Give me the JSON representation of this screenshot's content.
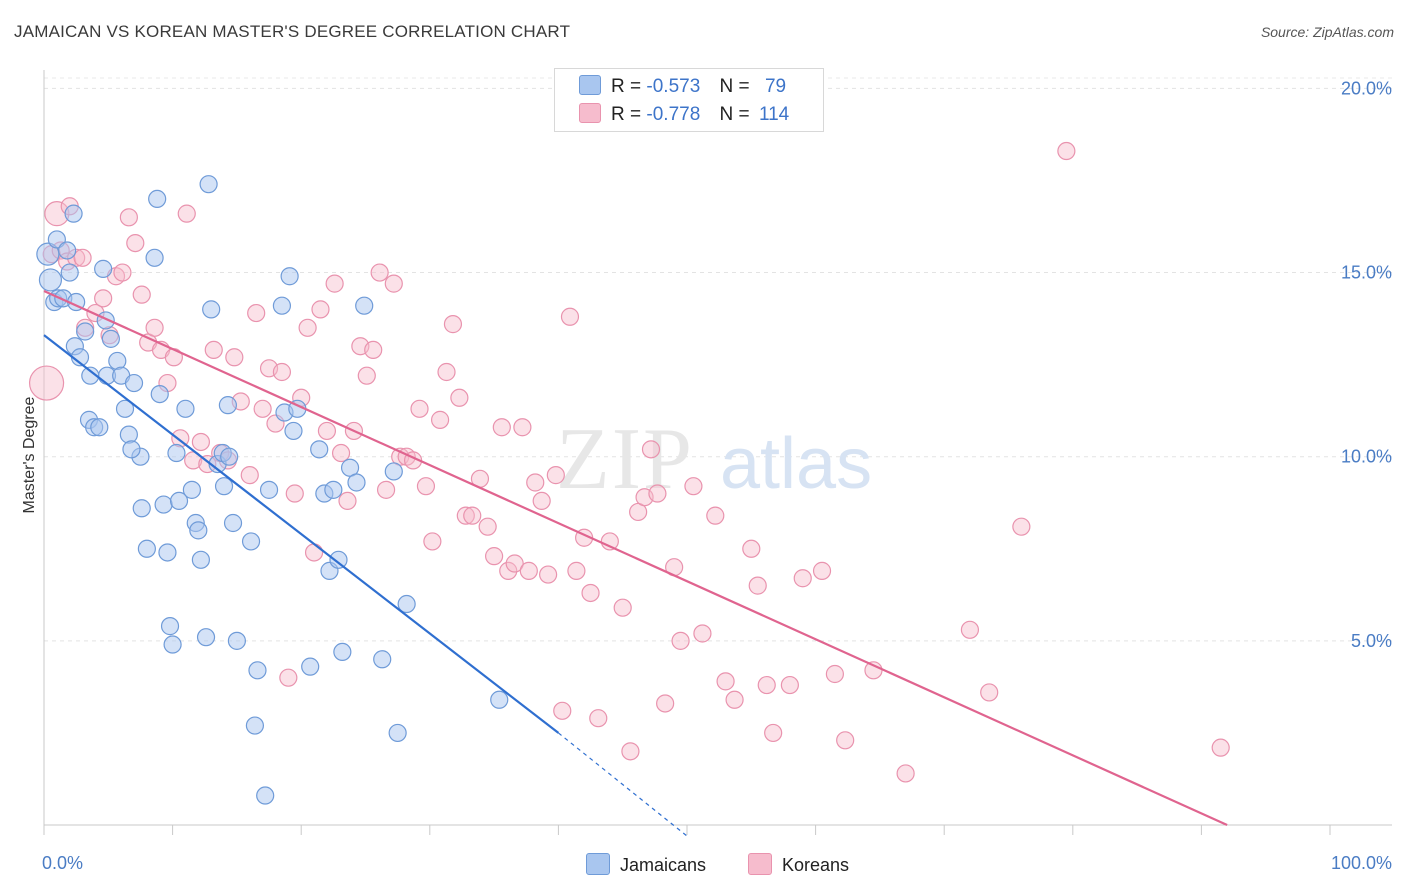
{
  "header": {
    "title": "JAMAICAN VS KOREAN MASTER'S DEGREE CORRELATION CHART",
    "source": "Source: ZipAtlas.com"
  },
  "watermark": {
    "zip": "ZIP",
    "atlas": "atlas"
  },
  "legend": {
    "jamaican": {
      "r_label": "R =",
      "r_value": "-0.573",
      "n_label": "N =",
      "n_value": "79"
    },
    "korean": {
      "r_label": "R =",
      "r_value": "-0.778",
      "n_label": "N =",
      "n_value": "114"
    }
  },
  "bottom_legend": {
    "jamaicans": "Jamaicans",
    "koreans": "Koreans"
  },
  "colors": {
    "jamaican_fill": "#a9c6ef",
    "jamaican_stroke": "#6f9bd8",
    "jamaican_line": "#2f6fd0",
    "korean_fill": "#f6bccd",
    "korean_stroke": "#e993ae",
    "korean_line": "#e0648f"
  },
  "chart_data": {
    "type": "scatter",
    "title": "JAMAICAN VS KOREAN MASTER'S DEGREE CORRELATION CHART",
    "ylabel": "Master's Degree",
    "xlabel": "",
    "x_tick_labels": [
      "0.0%",
      "100.0%"
    ],
    "y_tick_labels": [
      "5.0%",
      "10.0%",
      "15.0%",
      "20.0%"
    ],
    "xlim": [
      0,
      100
    ],
    "ylim": [
      0,
      20.5
    ],
    "grid": true,
    "series": [
      {
        "name": "Jamaicans",
        "r": -0.573,
        "n": 79,
        "trend": {
          "x": [
            0,
            40
          ],
          "y": [
            13.3,
            2.5
          ],
          "dashed_to": [
            50,
            -0.3
          ]
        },
        "points": [
          [
            0.3,
            15.5
          ],
          [
            0.5,
            14.8
          ],
          [
            0.8,
            14.2
          ],
          [
            1.0,
            15.9
          ],
          [
            1.1,
            14.3
          ],
          [
            1.5,
            14.3
          ],
          [
            1.8,
            15.6
          ],
          [
            2.0,
            15.0
          ],
          [
            2.3,
            16.6
          ],
          [
            2.5,
            14.2
          ],
          [
            2.4,
            13.0
          ],
          [
            2.8,
            12.7
          ],
          [
            3.2,
            13.4
          ],
          [
            3.5,
            11.0
          ],
          [
            3.9,
            10.8
          ],
          [
            4.3,
            10.8
          ],
          [
            4.6,
            15.1
          ],
          [
            4.8,
            13.7
          ],
          [
            4.9,
            12.2
          ],
          [
            5.2,
            13.2
          ],
          [
            5.7,
            12.6
          ],
          [
            6.0,
            12.2
          ],
          [
            6.3,
            11.3
          ],
          [
            6.6,
            10.6
          ],
          [
            7.0,
            12.0
          ],
          [
            7.5,
            10.0
          ],
          [
            7.6,
            8.6
          ],
          [
            8.0,
            7.5
          ],
          [
            8.6,
            15.4
          ],
          [
            8.8,
            17.0
          ],
          [
            9.0,
            11.7
          ],
          [
            9.3,
            8.7
          ],
          [
            9.6,
            7.4
          ],
          [
            9.8,
            5.4
          ],
          [
            10.0,
            4.9
          ],
          [
            10.3,
            10.1
          ],
          [
            10.5,
            8.8
          ],
          [
            11.0,
            11.3
          ],
          [
            11.5,
            9.1
          ],
          [
            11.8,
            8.2
          ],
          [
            12.0,
            8.0
          ],
          [
            12.2,
            7.2
          ],
          [
            12.6,
            5.1
          ],
          [
            13.0,
            14.0
          ],
          [
            13.5,
            9.8
          ],
          [
            13.9,
            10.1
          ],
          [
            14.0,
            9.2
          ],
          [
            14.3,
            11.4
          ],
          [
            14.7,
            8.2
          ],
          [
            15.0,
            5.0
          ],
          [
            12.8,
            17.4
          ],
          [
            14.4,
            10.0
          ],
          [
            16.1,
            7.7
          ],
          [
            16.4,
            2.7
          ],
          [
            16.6,
            4.2
          ],
          [
            17.2,
            0.8
          ],
          [
            17.5,
            9.1
          ],
          [
            18.5,
            14.1
          ],
          [
            18.7,
            11.2
          ],
          [
            19.1,
            14.9
          ],
          [
            19.4,
            10.7
          ],
          [
            19.7,
            11.3
          ],
          [
            20.7,
            4.3
          ],
          [
            21.4,
            10.2
          ],
          [
            21.8,
            9.0
          ],
          [
            22.2,
            6.9
          ],
          [
            22.5,
            9.1
          ],
          [
            22.9,
            7.2
          ],
          [
            23.2,
            4.7
          ],
          [
            23.8,
            9.7
          ],
          [
            24.3,
            9.3
          ],
          [
            24.9,
            14.1
          ],
          [
            26.3,
            4.5
          ],
          [
            27.5,
            2.5
          ],
          [
            27.2,
            9.6
          ],
          [
            28.2,
            6.0
          ],
          [
            35.4,
            3.4
          ],
          [
            3.6,
            12.2
          ],
          [
            6.8,
            10.2
          ]
        ]
      },
      {
        "name": "Koreans",
        "r": -0.778,
        "n": 114,
        "trend": {
          "x": [
            0,
            92
          ],
          "y": [
            14.5,
            0.0
          ]
        },
        "points": [
          [
            0.2,
            12.0
          ],
          [
            0.6,
            15.5
          ],
          [
            1.0,
            16.6
          ],
          [
            1.3,
            15.6
          ],
          [
            1.8,
            15.3
          ],
          [
            2.0,
            16.8
          ],
          [
            2.5,
            15.4
          ],
          [
            3.0,
            15.4
          ],
          [
            3.2,
            13.5
          ],
          [
            4.0,
            13.9
          ],
          [
            4.6,
            14.3
          ],
          [
            5.1,
            13.3
          ],
          [
            5.6,
            14.9
          ],
          [
            6.1,
            15.0
          ],
          [
            6.6,
            16.5
          ],
          [
            7.1,
            15.8
          ],
          [
            7.6,
            14.4
          ],
          [
            8.1,
            13.1
          ],
          [
            8.6,
            13.5
          ],
          [
            9.1,
            12.9
          ],
          [
            9.6,
            12.0
          ],
          [
            10.1,
            12.7
          ],
          [
            10.6,
            10.5
          ],
          [
            11.1,
            16.6
          ],
          [
            11.6,
            9.9
          ],
          [
            12.2,
            10.4
          ],
          [
            12.7,
            9.8
          ],
          [
            13.2,
            12.9
          ],
          [
            13.7,
            10.1
          ],
          [
            14.3,
            9.9
          ],
          [
            14.8,
            12.7
          ],
          [
            15.3,
            11.5
          ],
          [
            16.0,
            9.5
          ],
          [
            16.5,
            13.9
          ],
          [
            17.0,
            11.3
          ],
          [
            17.5,
            12.4
          ],
          [
            18.0,
            10.9
          ],
          [
            18.5,
            12.3
          ],
          [
            19.0,
            4.0
          ],
          [
            19.5,
            9.0
          ],
          [
            20.0,
            11.6
          ],
          [
            20.5,
            13.5
          ],
          [
            21.0,
            7.4
          ],
          [
            21.5,
            14.0
          ],
          [
            22.0,
            10.7
          ],
          [
            22.6,
            14.7
          ],
          [
            23.1,
            10.1
          ],
          [
            23.6,
            8.8
          ],
          [
            24.1,
            10.7
          ],
          [
            24.6,
            13.0
          ],
          [
            25.1,
            12.2
          ],
          [
            25.6,
            12.9
          ],
          [
            26.1,
            15.0
          ],
          [
            26.6,
            9.1
          ],
          [
            27.2,
            14.7
          ],
          [
            27.7,
            10.0
          ],
          [
            28.2,
            10.0
          ],
          [
            28.7,
            9.9
          ],
          [
            29.2,
            11.3
          ],
          [
            29.7,
            9.2
          ],
          [
            30.2,
            7.7
          ],
          [
            30.8,
            11.0
          ],
          [
            31.3,
            12.3
          ],
          [
            31.8,
            13.6
          ],
          [
            32.3,
            11.6
          ],
          [
            32.8,
            8.4
          ],
          [
            33.3,
            8.4
          ],
          [
            33.9,
            9.4
          ],
          [
            34.5,
            8.1
          ],
          [
            35.0,
            7.3
          ],
          [
            35.6,
            10.8
          ],
          [
            36.1,
            6.9
          ],
          [
            36.6,
            7.1
          ],
          [
            37.2,
            10.8
          ],
          [
            37.7,
            6.9
          ],
          [
            38.2,
            9.3
          ],
          [
            38.7,
            8.8
          ],
          [
            39.2,
            6.8
          ],
          [
            39.8,
            9.5
          ],
          [
            40.3,
            3.1
          ],
          [
            40.9,
            13.8
          ],
          [
            41.4,
            6.9
          ],
          [
            42.0,
            7.8
          ],
          [
            42.5,
            6.3
          ],
          [
            43.1,
            2.9
          ],
          [
            44.0,
            7.7
          ],
          [
            45.0,
            5.9
          ],
          [
            45.6,
            2.0
          ],
          [
            46.2,
            8.5
          ],
          [
            46.7,
            8.9
          ],
          [
            47.2,
            10.2
          ],
          [
            47.7,
            9.0
          ],
          [
            48.3,
            3.3
          ],
          [
            49.0,
            7.0
          ],
          [
            49.5,
            5.0
          ],
          [
            50.5,
            9.2
          ],
          [
            51.2,
            5.2
          ],
          [
            52.2,
            8.4
          ],
          [
            53.0,
            3.9
          ],
          [
            53.7,
            3.4
          ],
          [
            55.0,
            7.5
          ],
          [
            55.5,
            6.5
          ],
          [
            56.2,
            3.8
          ],
          [
            56.7,
            2.5
          ],
          [
            58.0,
            3.8
          ],
          [
            59.0,
            6.7
          ],
          [
            60.5,
            6.9
          ],
          [
            61.5,
            4.1
          ],
          [
            62.3,
            2.3
          ],
          [
            64.5,
            4.2
          ],
          [
            67.0,
            1.4
          ],
          [
            72.0,
            5.3
          ],
          [
            73.5,
            3.6
          ],
          [
            76.0,
            8.1
          ],
          [
            79.5,
            18.3
          ],
          [
            91.5,
            2.1
          ]
        ]
      }
    ]
  }
}
